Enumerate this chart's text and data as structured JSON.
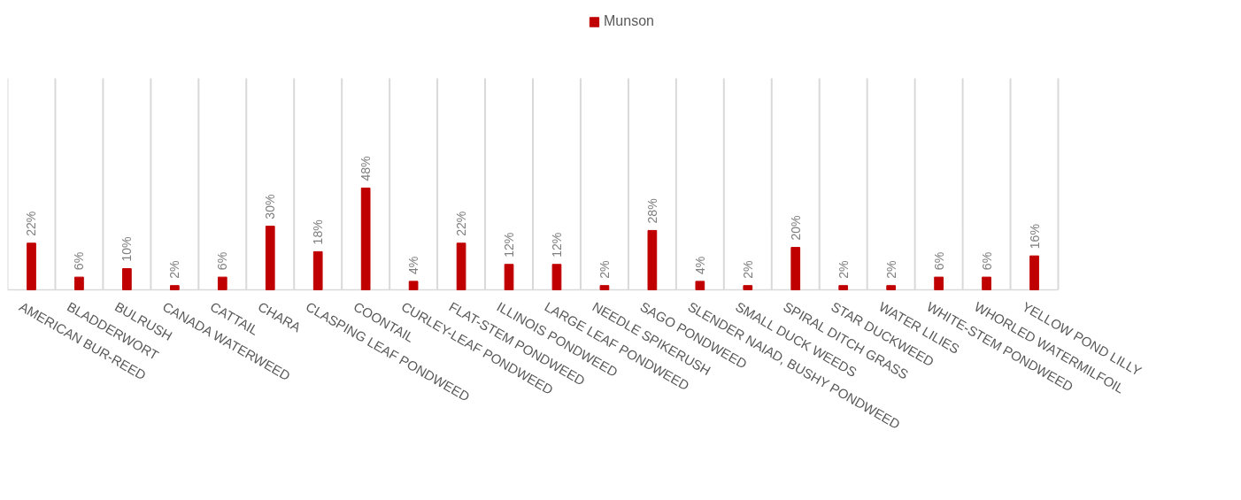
{
  "chart_data": {
    "type": "bar",
    "categories": [
      "AMERICAN BUR-REED",
      "BLADDERWORT",
      "BULRUSH",
      "CANADA WATERWEED",
      "CATTAIL",
      "CHARA",
      "CLASPING LEAF PONDWEED",
      "COONTAIL",
      "CURLEY-LEAF PONDWEED",
      "FLAT-STEM PONDWEED",
      "ILLINOIS PONDWEED",
      "LARGE LEAF PONDWEED",
      "NEEDLE SPIKERUSH",
      "SAGO PONDWEED",
      "SLENDER NAIAD, BUSHY PONDWEED",
      "SMALL DUCK WEEDS",
      "SPIRAL DITCH GRASS",
      "STAR DUCKWEED",
      "WATER LILIES",
      "WHITE-STEM PONDWEED",
      "WHORLED WATERMILFOIL",
      "YELLOW POND LILLY"
    ],
    "series": [
      {
        "name": "Munson",
        "color": "#c00000",
        "values": [
          22,
          6,
          10,
          2,
          6,
          30,
          18,
          48,
          4,
          22,
          12,
          12,
          2,
          28,
          4,
          2,
          20,
          2,
          2,
          6,
          6,
          16
        ],
        "value_labels": [
          "22%",
          "6%",
          "10%",
          "2%",
          "6%",
          "30%",
          "18%",
          "48%",
          "4%",
          "22%",
          "12%",
          "12%",
          "2%",
          "28%",
          "4%",
          "2%",
          "20%",
          "2%",
          "2%",
          "6%",
          "6%",
          "16%"
        ]
      }
    ],
    "grid": "x",
    "legend": "top",
    "tick_labels": "x"
  }
}
